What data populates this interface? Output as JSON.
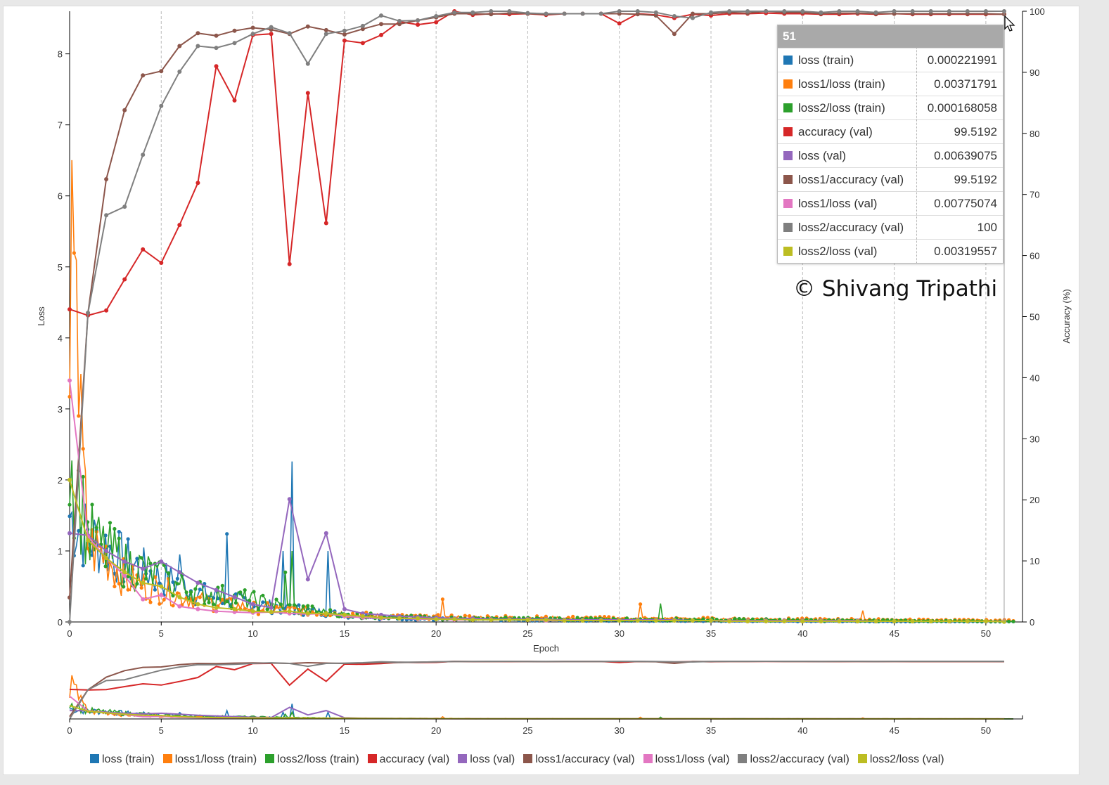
{
  "chart_data": {
    "type": "line",
    "xlabel": "Epoch",
    "ylabel": "Loss",
    "y2label": "Accuracy (%)",
    "xlim": [
      0,
      52
    ],
    "ylim": [
      0,
      8.6
    ],
    "y2lim": [
      0,
      100
    ],
    "x_ticks": [
      "0",
      "5",
      "10",
      "15",
      "20",
      "25",
      "30",
      "35",
      "40",
      "45",
      "50"
    ],
    "y_ticks": [
      "0",
      "1",
      "2",
      "3",
      "4",
      "5",
      "6",
      "7",
      "8"
    ],
    "y2_ticks": [
      "0",
      "10",
      "20",
      "30",
      "40",
      "50",
      "60",
      "70",
      "80",
      "90",
      "100"
    ],
    "grid": "vertical dashed at x ticks",
    "legend_position": "bottom",
    "series": [
      {
        "name": "loss (train)",
        "axis": "left",
        "color": "#1f77b4",
        "type": "noisy",
        "anchors": [
          [
            0,
            1.5
          ],
          [
            1,
            1.2
          ],
          [
            2,
            1.05
          ],
          [
            3,
            0.85
          ],
          [
            5,
            0.62
          ],
          [
            6,
            0.55
          ],
          [
            7,
            0.4
          ],
          [
            9,
            0.3
          ],
          [
            11,
            0.22
          ],
          [
            15,
            0.1
          ],
          [
            17,
            0.06
          ],
          [
            20,
            0.04
          ],
          [
            30,
            0.02
          ],
          [
            51.5,
            0.005
          ]
        ],
        "spikes": [
          [
            8.6,
            1.24
          ],
          [
            12.1,
            2.26
          ],
          [
            14.1,
            1.0
          ],
          [
            11.7,
            1.0
          ],
          [
            6.0,
            0.95
          ]
        ]
      },
      {
        "name": "loss1/loss (train)",
        "axis": "left",
        "color": "#ff7f0e",
        "type": "noisy",
        "anchors": [
          [
            0,
            2.5
          ],
          [
            0.3,
            7.85
          ],
          [
            0.5,
            3.0
          ],
          [
            1,
            1.05
          ],
          [
            2,
            0.95
          ],
          [
            3,
            0.6
          ],
          [
            5,
            0.45
          ],
          [
            7,
            0.3
          ],
          [
            10,
            0.2
          ],
          [
            15,
            0.12
          ],
          [
            17,
            0.08
          ],
          [
            20,
            0.07
          ],
          [
            30,
            0.05
          ],
          [
            51.5,
            0.02
          ]
        ],
        "spikes": [
          [
            20.3,
            0.32
          ],
          [
            31.2,
            0.25
          ],
          [
            43.3,
            0.16
          ]
        ]
      },
      {
        "name": "loss2/loss (train)",
        "axis": "left",
        "color": "#2ca02c",
        "type": "noisy",
        "anchors": [
          [
            0,
            2.4
          ],
          [
            1,
            1.2
          ],
          [
            2,
            1.0
          ],
          [
            3,
            0.85
          ],
          [
            5,
            0.6
          ],
          [
            7,
            0.42
          ],
          [
            10,
            0.3
          ],
          [
            12,
            0.2
          ],
          [
            15,
            0.1
          ],
          [
            20,
            0.05
          ],
          [
            30,
            0.04
          ],
          [
            51.5,
            0.01
          ]
        ],
        "spikes": [
          [
            11.8,
            0.7
          ],
          [
            12.1,
            1.0
          ],
          [
            3.1,
            1.1
          ],
          [
            5.2,
            0.8
          ],
          [
            32.2,
            0.26
          ]
        ]
      },
      {
        "name": "accuracy (val)",
        "axis": "right",
        "color": "#d62728",
        "type": "line",
        "x": [
          0,
          1,
          2,
          3,
          4,
          5,
          6,
          7,
          8,
          9,
          10,
          11,
          12,
          13,
          14,
          15,
          16,
          17,
          18,
          19,
          20,
          21,
          22,
          23,
          24,
          25,
          26,
          27,
          28,
          29,
          30,
          31,
          32,
          33,
          34,
          35,
          36,
          37,
          38,
          39,
          40,
          41,
          42,
          43,
          44,
          45,
          46,
          47,
          48,
          49,
          50,
          51
        ],
        "values": [
          51.2,
          50.2,
          51.0,
          56.1,
          61.0,
          58.8,
          65.0,
          71.9,
          91.0,
          85.4,
          96.1,
          96.3,
          58.6,
          86.6,
          65.3,
          95.2,
          94.8,
          96.1,
          98.3,
          97.8,
          98.2,
          100,
          99.4,
          99.6,
          99.5,
          99.6,
          99.4,
          99.6,
          99.6,
          99.6,
          98.0,
          99.6,
          99.4,
          98.9,
          99.5,
          99.3,
          99.6,
          99.6,
          99.7,
          99.6,
          99.6,
          99.5,
          99.5,
          99.6,
          99.5,
          99.6,
          99.5,
          99.5,
          99.5,
          99.5,
          99.5,
          99.52
        ]
      },
      {
        "name": "loss (val)",
        "axis": "left",
        "color": "#9467bd",
        "type": "line",
        "x": [
          0,
          1,
          2,
          3,
          4,
          5,
          6,
          7,
          8,
          9,
          10,
          11,
          12,
          13,
          14,
          15,
          16,
          17,
          18,
          19,
          20,
          21,
          22,
          23,
          24,
          25,
          26,
          27,
          28,
          29,
          30,
          31,
          32,
          33,
          34,
          35,
          36,
          37,
          38,
          39,
          40,
          41,
          42,
          43,
          44,
          45,
          46,
          47,
          48,
          49,
          50,
          51
        ],
        "values": [
          1.25,
          1.22,
          1.0,
          0.85,
          0.75,
          0.85,
          0.7,
          0.55,
          0.45,
          0.35,
          0.25,
          0.2,
          1.73,
          0.6,
          1.25,
          0.18,
          0.12,
          0.1,
          0.08,
          0.07,
          0.06,
          0.05,
          0.05,
          0.04,
          0.04,
          0.04,
          0.04,
          0.03,
          0.03,
          0.03,
          0.03,
          0.03,
          0.03,
          0.03,
          0.02,
          0.02,
          0.02,
          0.02,
          0.02,
          0.02,
          0.02,
          0.02,
          0.02,
          0.02,
          0.01,
          0.01,
          0.01,
          0.01,
          0.01,
          0.01,
          0.01,
          0.0064
        ]
      },
      {
        "name": "loss1/accuracy (val)",
        "axis": "right",
        "color": "#8c564b",
        "type": "line",
        "x": [
          0,
          1,
          2,
          3,
          4,
          5,
          6,
          7,
          8,
          9,
          10,
          11,
          12,
          13,
          14,
          15,
          16,
          17,
          18,
          19,
          20,
          21,
          22,
          23,
          24,
          25,
          26,
          27,
          28,
          29,
          30,
          31,
          32,
          33,
          34,
          35,
          36,
          37,
          38,
          39,
          40,
          41,
          42,
          43,
          44,
          45,
          46,
          47,
          48,
          49,
          50,
          51
        ],
        "values": [
          4.0,
          50.6,
          72.5,
          83.8,
          89.5,
          90.2,
          94.3,
          96.4,
          96.0,
          96.8,
          97.3,
          97.0,
          96.3,
          97.5,
          96.9,
          96.2,
          97.1,
          97.9,
          97.9,
          98.5,
          99.0,
          99.6,
          99.6,
          99.5,
          99.7,
          99.6,
          99.5,
          99.6,
          99.6,
          99.6,
          99.6,
          99.5,
          99.3,
          96.3,
          99.6,
          99.6,
          99.8,
          99.7,
          100,
          99.8,
          99.8,
          99.6,
          99.7,
          99.7,
          99.6,
          99.6,
          99.6,
          99.6,
          99.6,
          99.6,
          99.6,
          99.52
        ]
      },
      {
        "name": "loss1/loss (val)",
        "axis": "left",
        "color": "#e377c2",
        "type": "line",
        "x": [
          0,
          1,
          2,
          3,
          4,
          5,
          6,
          7,
          8,
          9,
          10,
          11,
          12,
          13,
          14,
          15,
          16,
          17,
          18,
          19,
          20,
          21,
          22,
          23,
          24,
          25,
          26,
          27,
          28,
          29,
          30,
          31,
          32,
          33,
          34,
          35,
          36,
          37,
          38,
          39,
          40,
          41,
          42,
          43,
          44,
          45,
          46,
          47,
          48,
          49,
          50,
          51
        ],
        "values": [
          3.4,
          1.2,
          0.9,
          0.65,
          0.32,
          0.38,
          0.22,
          0.18,
          0.15,
          0.14,
          0.13,
          0.14,
          0.12,
          0.11,
          0.12,
          0.08,
          0.06,
          0.05,
          0.05,
          0.04,
          0.04,
          0.03,
          0.03,
          0.03,
          0.03,
          0.03,
          0.02,
          0.02,
          0.02,
          0.02,
          0.02,
          0.02,
          0.02,
          0.02,
          0.02,
          0.02,
          0.01,
          0.01,
          0.01,
          0.01,
          0.01,
          0.01,
          0.01,
          0.01,
          0.01,
          0.01,
          0.01,
          0.01,
          0.01,
          0.01,
          0.01,
          0.0078
        ]
      },
      {
        "name": "loss2/accuracy (val)",
        "axis": "right",
        "color": "#7f7f7f",
        "type": "line",
        "x": [
          0,
          1,
          2,
          3,
          4,
          5,
          6,
          7,
          8,
          9,
          10,
          11,
          12,
          13,
          14,
          15,
          16,
          17,
          18,
          19,
          20,
          21,
          22,
          23,
          24,
          25,
          26,
          27,
          28,
          29,
          30,
          31,
          32,
          33,
          34,
          35,
          36,
          37,
          38,
          39,
          40,
          41,
          42,
          43,
          44,
          45,
          46,
          47,
          48,
          49,
          50,
          51
        ],
        "values": [
          0,
          50.6,
          66.6,
          68.0,
          76.5,
          84.5,
          90.1,
          94.3,
          94.0,
          94.8,
          96.3,
          97.4,
          96.4,
          91.4,
          96.3,
          96.8,
          97.6,
          99.3,
          98.4,
          98.5,
          99.2,
          99.8,
          99.8,
          100,
          100,
          99.7,
          99.6,
          99.6,
          99.6,
          99.6,
          100,
          100,
          99.8,
          99.2,
          98.9,
          99.8,
          100,
          100,
          100,
          100,
          100,
          99.8,
          100,
          100,
          99.8,
          100,
          100,
          100,
          100,
          100,
          100,
          100
        ]
      },
      {
        "name": "loss2/loss (val)",
        "axis": "left",
        "color": "#bcbd22",
        "type": "line",
        "x": [
          0,
          1,
          2,
          3,
          4,
          5,
          6,
          7,
          8,
          9,
          10,
          11,
          12,
          13,
          14,
          15,
          16,
          17,
          18,
          19,
          20,
          21,
          22,
          23,
          24,
          25,
          26,
          27,
          28,
          29,
          30,
          31,
          32,
          33,
          34,
          35,
          36,
          37,
          38,
          39,
          40,
          41,
          42,
          43,
          44,
          45,
          46,
          47,
          48,
          49,
          50,
          51
        ],
        "values": [
          2.0,
          1.15,
          0.9,
          0.7,
          0.55,
          0.5,
          0.35,
          0.25,
          0.2,
          0.18,
          0.15,
          0.14,
          0.15,
          0.12,
          0.12,
          0.1,
          0.08,
          0.06,
          0.05,
          0.05,
          0.04,
          0.04,
          0.03,
          0.03,
          0.03,
          0.03,
          0.03,
          0.02,
          0.02,
          0.02,
          0.02,
          0.02,
          0.02,
          0.02,
          0.02,
          0.02,
          0.01,
          0.01,
          0.01,
          0.01,
          0.01,
          0.01,
          0.01,
          0.01,
          0.01,
          0.01,
          0.01,
          0.01,
          0.01,
          0.01,
          0.01,
          0.0032
        ]
      }
    ]
  },
  "tooltip": {
    "epoch": "51",
    "rows": [
      {
        "label": "loss (train)",
        "value": "0.000221991",
        "color": "#1f77b4"
      },
      {
        "label": "loss1/loss (train)",
        "value": "0.00371791",
        "color": "#ff7f0e"
      },
      {
        "label": "loss2/loss (train)",
        "value": "0.000168058",
        "color": "#2ca02c"
      },
      {
        "label": "accuracy (val)",
        "value": "99.5192",
        "color": "#d62728"
      },
      {
        "label": "loss (val)",
        "value": "0.00639075",
        "color": "#9467bd"
      },
      {
        "label": "loss1/accuracy (val)",
        "value": "99.5192",
        "color": "#8c564b"
      },
      {
        "label": "loss1/loss (val)",
        "value": "0.00775074",
        "color": "#e377c2"
      },
      {
        "label": "loss2/accuracy (val)",
        "value": "100",
        "color": "#7f7f7f"
      },
      {
        "label": "loss2/loss (val)",
        "value": "0.00319557",
        "color": "#bcbd22"
      }
    ]
  },
  "watermark": "© Shivang Tripathi",
  "navigator": {
    "x_ticks": [
      "0",
      "5",
      "10",
      "15",
      "20",
      "25",
      "30",
      "35",
      "40",
      "45",
      "50"
    ]
  }
}
